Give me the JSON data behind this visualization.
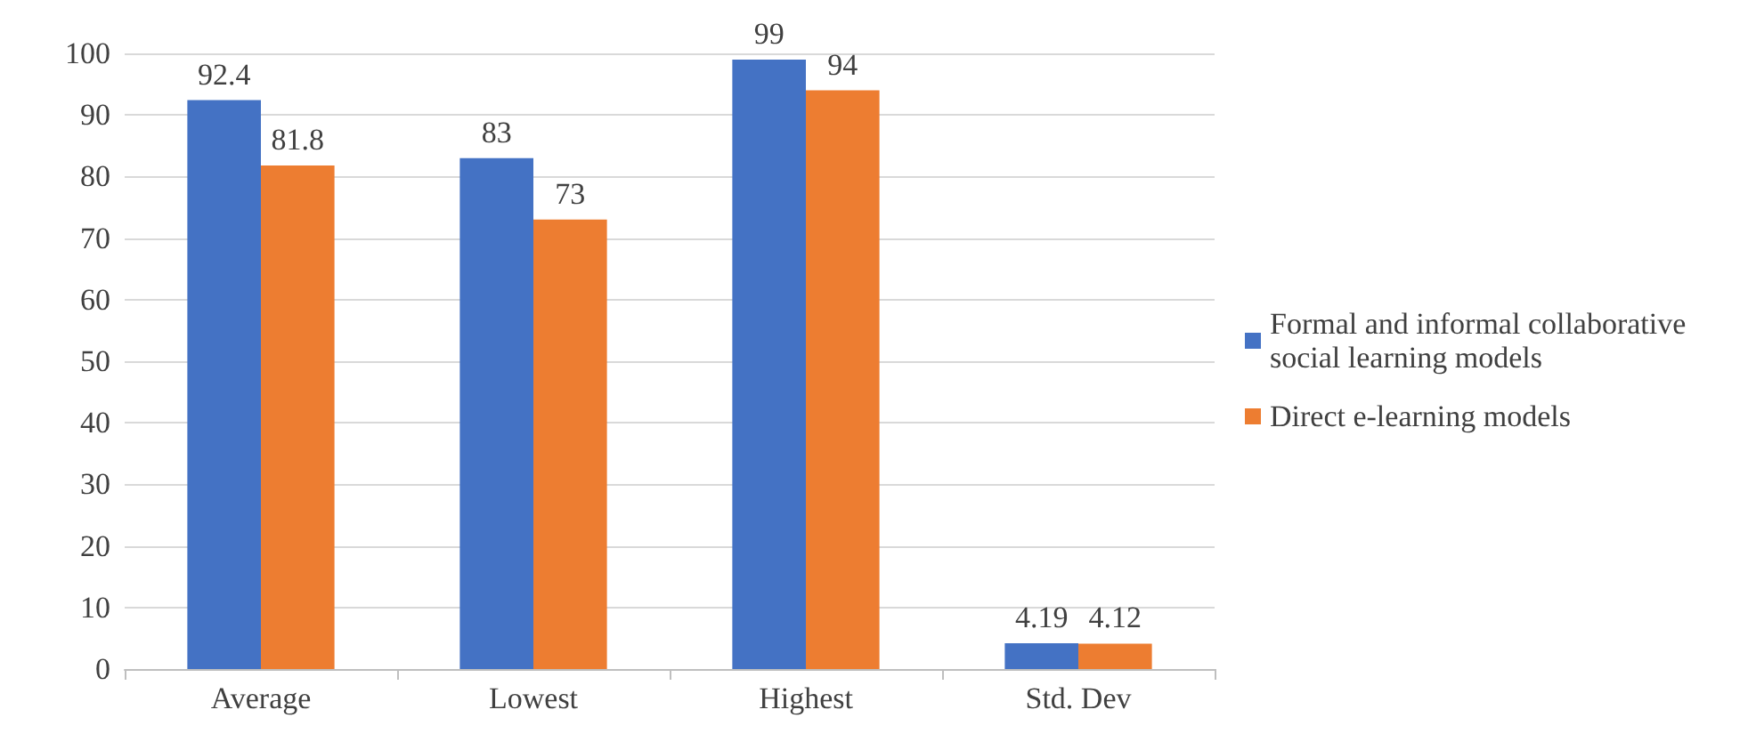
{
  "chart_data": {
    "type": "bar",
    "categories": [
      "Average",
      "Lowest",
      "Highest",
      "Std. Dev"
    ],
    "series": [
      {
        "name": "Formal and informal collaborative social learning models",
        "color": "#4472c4",
        "values": [
          92.4,
          83,
          99,
          4.19
        ]
      },
      {
        "name": "Direct e-learning models",
        "color": "#ed7d31",
        "values": [
          81.8,
          73,
          94,
          4.12
        ]
      }
    ],
    "ylim": [
      0,
      100
    ],
    "yticks": [
      0,
      10,
      20,
      30,
      40,
      50,
      60,
      70,
      80,
      90,
      100
    ],
    "grid": "y",
    "legend": "right",
    "data_labels": true
  }
}
